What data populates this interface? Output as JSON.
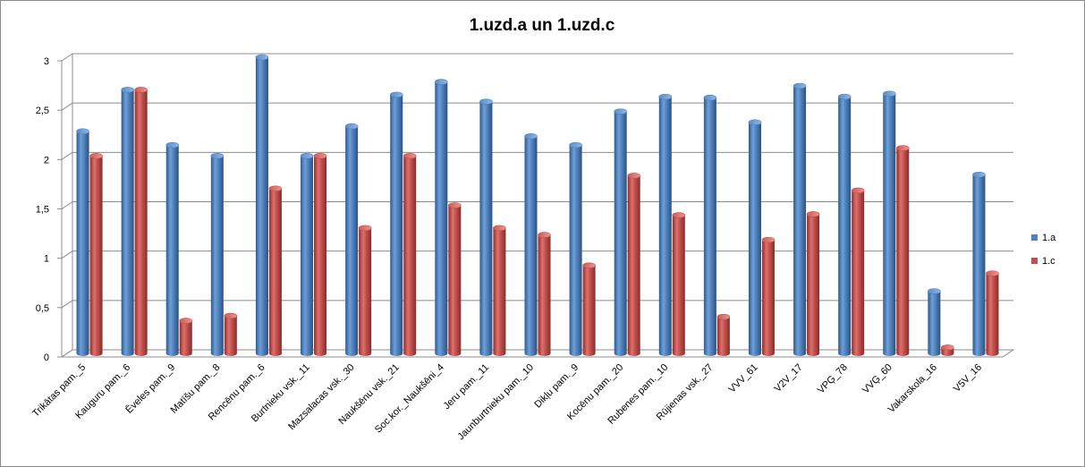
{
  "chart_data": {
    "type": "bar",
    "title": "1.uzd.a un 1.uzd.c",
    "xlabel": "",
    "ylabel": "",
    "ylim": [
      0,
      3
    ],
    "yticks": [
      "0",
      "0,5",
      "1",
      "1,5",
      "2",
      "2,5",
      "3"
    ],
    "yticks_values": [
      0,
      0.5,
      1,
      1.5,
      2,
      2.5,
      3
    ],
    "grid": true,
    "legend_position": "right",
    "categories": [
      "Trikātas pam._5",
      "Kauguru pam._6",
      "Ēveles pam._9",
      "Matīšu pam._8",
      "Rencēnu pam._6",
      "Burtnieku vsk._11",
      "Mazsalacas vsk._30",
      "Naukšēnu vsk._21",
      "Soc.kor._Naukšēni_4",
      "Jeru pam._11",
      "Jaunburtnieku pam._10",
      "Dikļu pam._9",
      "Kocēnu pam._20",
      "Rubenes pam._10",
      "Rūjienas vsk._27",
      "VVV_61",
      "V2V_17",
      "VPĢ_78",
      "VVĢ_60",
      "Vakarskola_16",
      "V5V_16"
    ],
    "series": [
      {
        "name": "1.a",
        "color": "#4f81bd",
        "values": [
          2.25,
          2.67,
          2.11,
          2.0,
          3.0,
          2.0,
          2.3,
          2.62,
          2.75,
          2.55,
          2.2,
          2.11,
          2.45,
          2.6,
          2.59,
          2.34,
          2.71,
          2.6,
          2.63,
          0.63,
          1.81
        ]
      },
      {
        "name": "1.c",
        "color": "#c0504d",
        "values": [
          2.0,
          2.67,
          0.33,
          0.38,
          1.67,
          2.0,
          1.27,
          2.0,
          1.5,
          1.27,
          1.2,
          0.89,
          1.8,
          1.4,
          0.37,
          1.15,
          1.41,
          1.65,
          2.08,
          0.06,
          0.81
        ]
      }
    ]
  }
}
